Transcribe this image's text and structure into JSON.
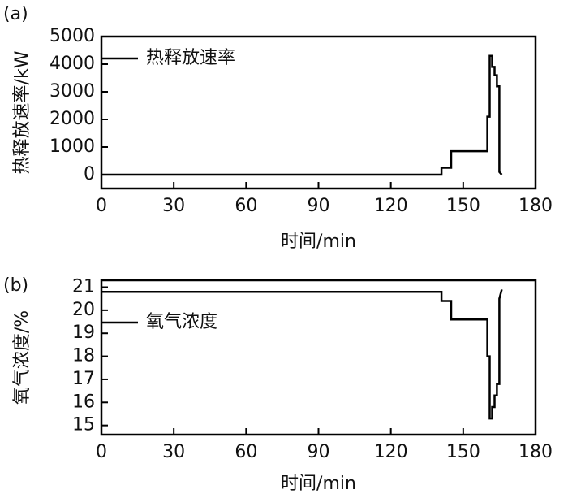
{
  "chart_data": [
    {
      "type": "line",
      "panel_label": "(a)",
      "xlabel": "时间/min",
      "ylabel": "热释放速率/kW",
      "x": [
        0,
        141,
        141,
        145,
        145,
        160,
        160,
        161,
        161,
        162,
        162,
        163,
        163,
        164,
        164,
        165,
        165,
        166
      ],
      "series": [
        {
          "name": "热释放速率",
          "color": "#000000",
          "values": [
            0,
            0,
            250,
            250,
            850,
            850,
            2100,
            2100,
            4300,
            4300,
            3900,
            3900,
            3600,
            3600,
            3200,
            3200,
            100,
            0
          ]
        }
      ],
      "xlim": [
        0,
        180
      ],
      "xticks": [
        0,
        30,
        60,
        90,
        120,
        150,
        180
      ],
      "ylim": [
        -500,
        5000
      ],
      "yticks": [
        0,
        1000,
        2000,
        3000,
        4000,
        5000
      ]
    },
    {
      "type": "line",
      "panel_label": "(b)",
      "xlabel": "时间/min",
      "ylabel": "氧气浓度/%",
      "x": [
        0,
        141,
        141,
        145,
        145,
        160,
        160,
        161,
        161,
        162,
        162,
        163,
        163,
        164,
        164,
        165,
        165,
        166
      ],
      "series": [
        {
          "name": "氧气浓度",
          "color": "#000000",
          "values": [
            20.8,
            20.8,
            20.4,
            20.4,
            19.6,
            19.6,
            18.0,
            18.0,
            15.3,
            15.3,
            15.8,
            15.8,
            16.3,
            16.3,
            16.8,
            16.8,
            20.5,
            20.9
          ]
        }
      ],
      "xlim": [
        0,
        180
      ],
      "xticks": [
        0,
        30,
        60,
        90,
        120,
        150,
        180
      ],
      "ylim": [
        14.6,
        21.3
      ],
      "yticks": [
        15,
        16,
        17,
        18,
        19,
        20,
        21
      ]
    }
  ]
}
